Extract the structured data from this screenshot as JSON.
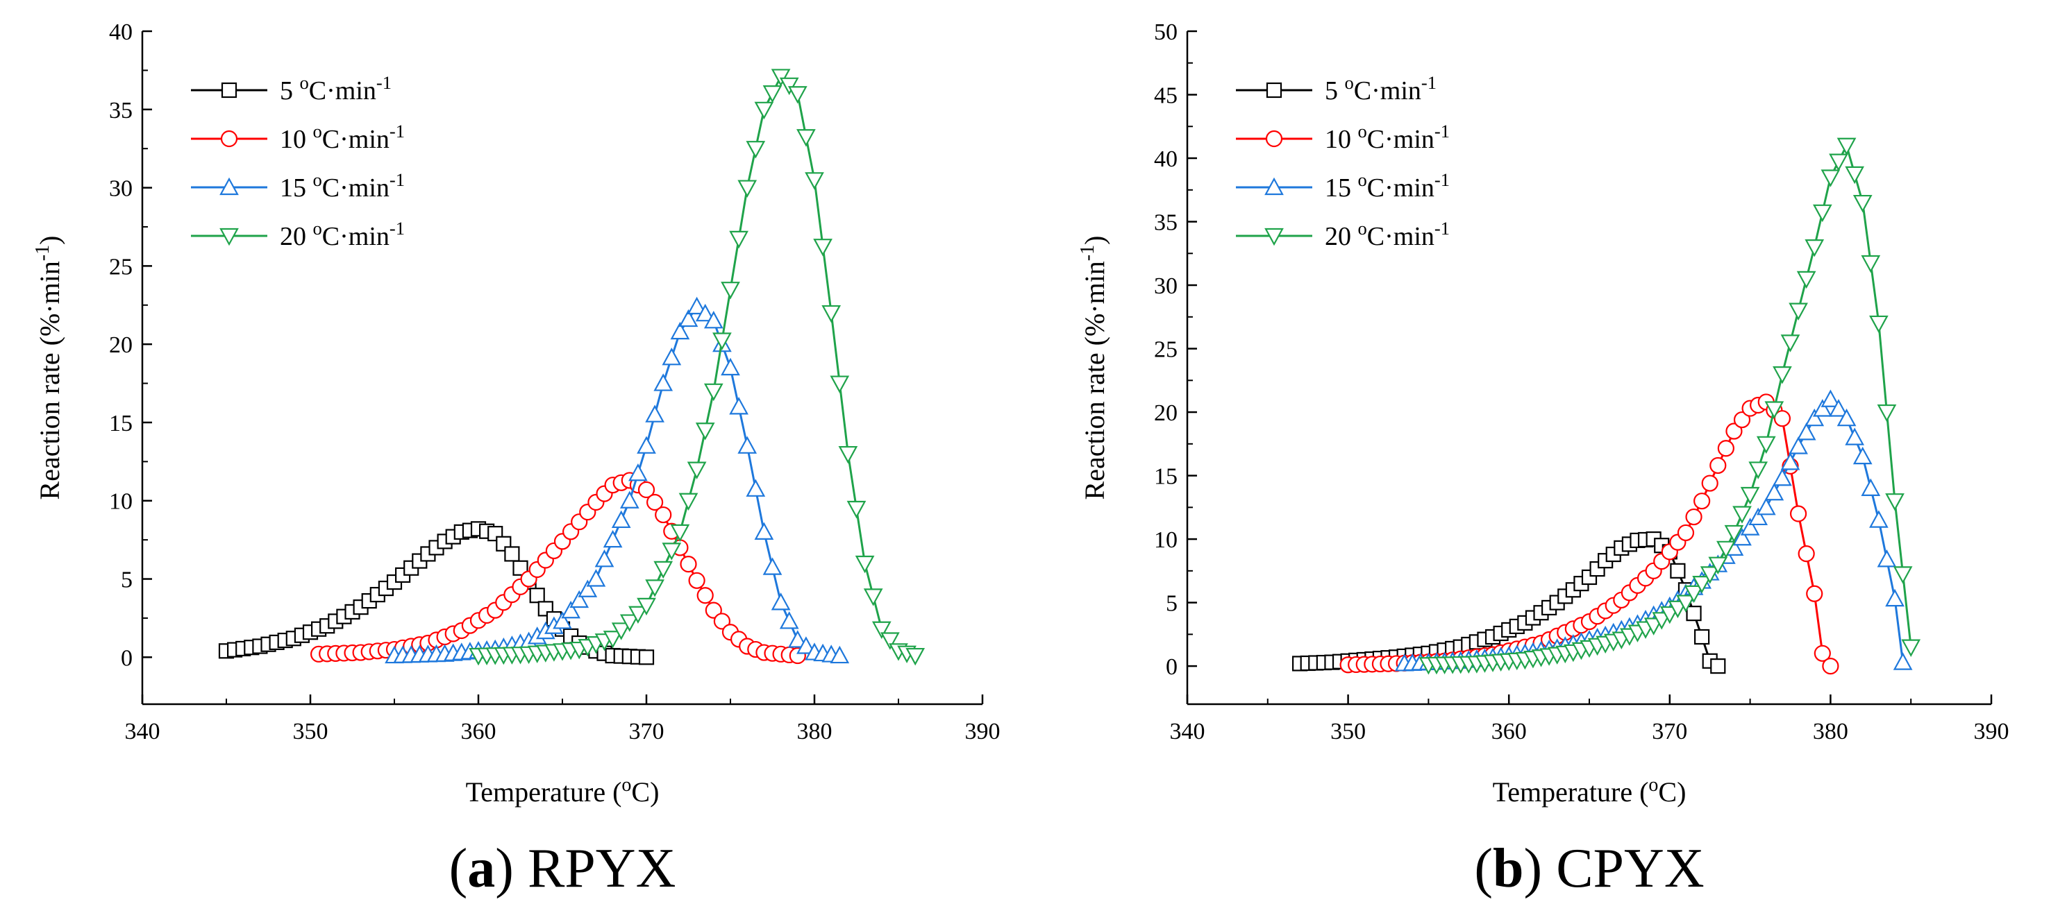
{
  "figure": {
    "panels": [
      {
        "caption_letter": "a",
        "caption_rest": " RPYX"
      },
      {
        "caption_letter": "b",
        "caption_rest": " CPYX"
      }
    ]
  },
  "chart_data": [
    {
      "type": "line",
      "title": "",
      "xlabel": "Temperature (oC)",
      "ylabel": "Reaction rate (%·min-1)",
      "xlim": [
        340,
        390
      ],
      "ylim": [
        -3,
        40
      ],
      "xticks": [
        340,
        350,
        360,
        370,
        380,
        390
      ],
      "yticks": [
        0,
        5,
        10,
        15,
        20,
        25,
        30,
        35,
        40
      ],
      "grid": false,
      "legend_position": "top-left",
      "series": [
        {
          "name": "5 oC·min-1",
          "color": "#000000",
          "marker": "square",
          "x": [
            345,
            347,
            349,
            351,
            353,
            355,
            357,
            358,
            359,
            360,
            361,
            362,
            363,
            364,
            365,
            366,
            367,
            368,
            370
          ],
          "y": [
            0.4,
            0.7,
            1.2,
            2.0,
            3.2,
            4.8,
            6.6,
            7.4,
            8.0,
            8.2,
            7.9,
            6.6,
            4.8,
            3.1,
            1.8,
            0.9,
            0.4,
            0.1,
            0.0
          ]
        },
        {
          "name": "10 oC·min-1",
          "color": "#ff0000",
          "marker": "circle",
          "x": [
            350.5,
            353,
            355,
            357,
            359,
            361,
            363,
            365,
            367,
            368,
            369,
            370,
            371,
            372,
            373,
            374,
            375,
            376,
            377,
            379
          ],
          "y": [
            0.2,
            0.3,
            0.5,
            0.9,
            1.7,
            3.0,
            5.0,
            7.4,
            9.9,
            11.0,
            11.3,
            10.7,
            9.1,
            7.0,
            4.9,
            3.0,
            1.6,
            0.7,
            0.3,
            0.1
          ]
        },
        {
          "name": "15 oC·min-1",
          "color": "#1e78dc",
          "marker": "triangle-up",
          "x": [
            355,
            358,
            361,
            363,
            365,
            367,
            369,
            370,
            371,
            372,
            373,
            374,
            375,
            376,
            377,
            378,
            379,
            380,
            381.5
          ],
          "y": [
            0.1,
            0.2,
            0.5,
            1.0,
            2.3,
            5.0,
            10.0,
            13.5,
            17.5,
            20.8,
            22.4,
            21.5,
            18.5,
            13.5,
            8.0,
            3.5,
            1.1,
            0.3,
            0.1
          ]
        },
        {
          "name": "20 oC·min-1",
          "color": "#1fa34a",
          "marker": "triangle-down",
          "x": [
            360,
            363,
            366,
            368,
            370,
            372,
            373,
            374,
            375,
            376,
            377,
            378,
            379,
            380,
            381,
            382,
            383,
            384,
            385,
            386
          ],
          "y": [
            0.1,
            0.2,
            0.5,
            1.2,
            3.3,
            8.0,
            12.0,
            17.0,
            23.5,
            30.0,
            35.0,
            37.1,
            36.0,
            30.5,
            22.0,
            13.0,
            6.0,
            1.8,
            0.4,
            0.1
          ]
        }
      ]
    },
    {
      "type": "line",
      "title": "",
      "xlabel": "Temperature (oC)",
      "ylabel": "Reaction rate (%·min-1)",
      "xlim": [
        340,
        390
      ],
      "ylim": [
        -3,
        50
      ],
      "xticks": [
        340,
        350,
        360,
        370,
        380,
        390
      ],
      "yticks": [
        0,
        5,
        10,
        15,
        20,
        25,
        30,
        35,
        40,
        45,
        50
      ],
      "grid": false,
      "legend_position": "top-left",
      "series": [
        {
          "name": "5 oC·min-1",
          "color": "#000000",
          "marker": "square",
          "x": [
            347,
            349,
            351,
            353,
            355,
            357,
            359,
            361,
            363,
            365,
            366,
            367,
            368,
            369,
            370,
            371,
            372,
            372.5,
            373
          ],
          "y": [
            0.2,
            0.3,
            0.5,
            0.7,
            1.0,
            1.5,
            2.3,
            3.4,
            5.0,
            7.0,
            8.3,
            9.3,
            9.9,
            10.0,
            9.0,
            6.0,
            2.3,
            0.4,
            0.0
          ]
        },
        {
          "name": "10 oC·min-1",
          "color": "#ff0000",
          "marker": "circle",
          "x": [
            350,
            353,
            356,
            359,
            362,
            365,
            367,
            369,
            371,
            372,
            373,
            374,
            375,
            376,
            377,
            378,
            379,
            379.5,
            380
          ],
          "y": [
            0.1,
            0.2,
            0.4,
            0.9,
            1.8,
            3.5,
            5.2,
            7.5,
            10.5,
            13.0,
            15.8,
            18.5,
            20.3,
            20.8,
            19.5,
            12.0,
            5.7,
            1.0,
            0.0
          ]
        },
        {
          "name": "15 oC·min-1",
          "color": "#1e78dc",
          "marker": "triangle-up",
          "x": [
            353.5,
            357,
            360,
            363,
            366,
            368,
            370,
            372,
            374,
            376,
            377,
            378,
            379,
            380,
            381,
            382,
            383,
            384,
            384.5
          ],
          "y": [
            0.2,
            0.4,
            0.8,
            1.4,
            2.4,
            3.3,
            4.7,
            6.7,
            9.3,
            12.5,
            14.8,
            17.3,
            19.5,
            21.0,
            19.5,
            16.5,
            11.5,
            5.3,
            0.3
          ]
        },
        {
          "name": "20 oC·min-1",
          "color": "#1fa34a",
          "marker": "triangle-down",
          "x": [
            355,
            358,
            361,
            364,
            367,
            369,
            371,
            373,
            374,
            375,
            376,
            377,
            378,
            379,
            380,
            381,
            382,
            383,
            384,
            385
          ],
          "y": [
            0.1,
            0.2,
            0.5,
            1.1,
            2.1,
            3.2,
            5.0,
            8.0,
            10.5,
            13.5,
            17.5,
            23.0,
            28.0,
            33.0,
            38.5,
            41.0,
            36.5,
            27.0,
            13.0,
            1.5
          ]
        }
      ]
    }
  ]
}
